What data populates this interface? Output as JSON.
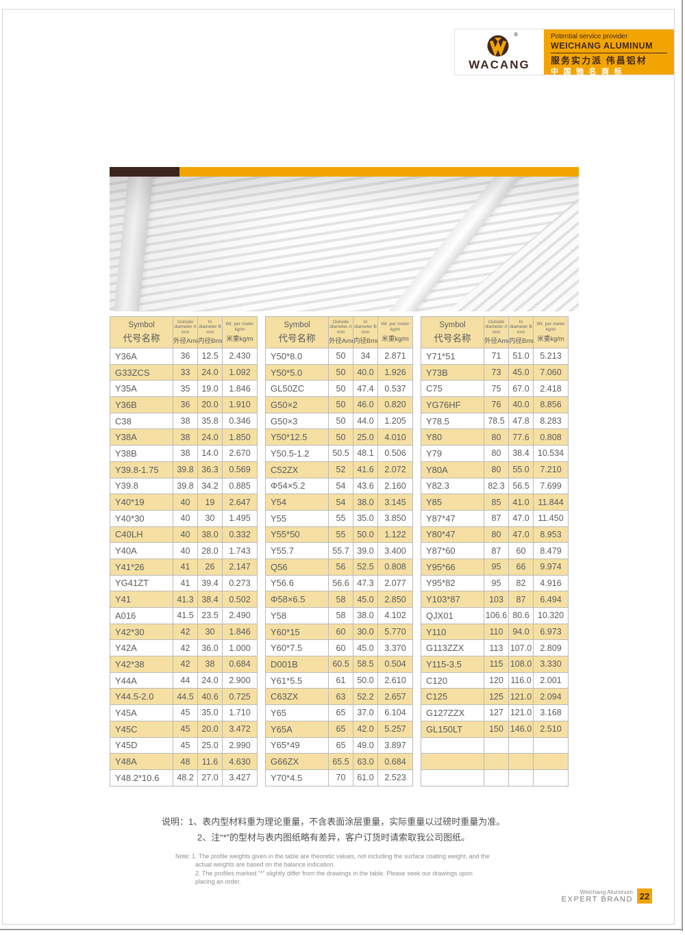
{
  "colors": {
    "accent_orange": "#F2A502",
    "dark_brown": "#42281E",
    "table_yellow": "#F5DFA2",
    "banner_bar_brown": "#3B241D"
  },
  "brand": {
    "logo_text": "WACANG",
    "registered_mark": "®",
    "tagline_en_1": "Potential service provider",
    "tagline_en_2": "WEICHANG ALUMINUM",
    "tagline_cn_1": "服务实力派  伟昌铝材",
    "tagline_cn_2": "中国驰名商标"
  },
  "table_header": {
    "symbol_en": "Symbol",
    "symbol_cn": "代号名称",
    "col_a_en": "Outside diameter A mm",
    "col_a_cn": "外径Amm",
    "col_b_en": "In diameter B mm",
    "col_b_cn": "内径Bmm",
    "col_wt_en": "Wt. per meter kg/m",
    "col_wt_cn": "米重kg/m"
  },
  "tables": [
    {
      "rows": [
        [
          "Y36A",
          "36",
          "12.5",
          "2.430"
        ],
        [
          "G33ZCS",
          "33",
          "24.0",
          "1.092"
        ],
        [
          "Y35A",
          "35",
          "19.0",
          "1.846"
        ],
        [
          "Y36B",
          "36",
          "20.0",
          "1.910"
        ],
        [
          "C38",
          "38",
          "35.8",
          "0.346"
        ],
        [
          "Y38A",
          "38",
          "24.0",
          "1.850"
        ],
        [
          "Y38B",
          "38",
          "14.0",
          "2.670"
        ],
        [
          "Y39.8-1.75",
          "39.8",
          "36.3",
          "0.569"
        ],
        [
          "Y39.8",
          "39.8",
          "34.2",
          "0.885"
        ],
        [
          "Y40*19",
          "40",
          "19",
          "2.647"
        ],
        [
          "Y40*30",
          "40",
          "30",
          "1.495"
        ],
        [
          "C40LH",
          "40",
          "38.0",
          "0.332"
        ],
        [
          "Y40A",
          "40",
          "28.0",
          "1.743"
        ],
        [
          "Y41*26",
          "41",
          "26",
          "2.147"
        ],
        [
          "YG41ZT",
          "41",
          "39.4",
          "0.273"
        ],
        [
          "Y41",
          "41.3",
          "38.4",
          "0.502"
        ],
        [
          "A016",
          "41.5",
          "23.5",
          "2.490"
        ],
        [
          "Y42*30",
          "42",
          "30",
          "1.846"
        ],
        [
          "Y42A",
          "42",
          "36.0",
          "1.000"
        ],
        [
          "Y42*38",
          "42",
          "38",
          "0.684"
        ],
        [
          "Y44A",
          "44",
          "24.0",
          "2.900"
        ],
        [
          "Y44.5-2.0",
          "44.5",
          "40.6",
          "0.725"
        ],
        [
          "Y45A",
          "45",
          "35.0",
          "1.710"
        ],
        [
          "Y45C",
          "45",
          "20.0",
          "3.472"
        ],
        [
          "Y45D",
          "45",
          "25.0",
          "2.990"
        ],
        [
          "Y48A",
          "48",
          "11.6",
          "4.630"
        ],
        [
          "Y48.2*10.6",
          "48.2",
          "27.0",
          "3.427"
        ]
      ]
    },
    {
      "rows": [
        [
          "Y50*8.0",
          "50",
          "34",
          "2.871"
        ],
        [
          "Y50*5.0",
          "50",
          "40.0",
          "1.926"
        ],
        [
          "GL50ZC",
          "50",
          "47.4",
          "0.537"
        ],
        [
          "G50×2",
          "50",
          "46.0",
          "0.820"
        ],
        [
          "G50×3",
          "50",
          "44.0",
          "1.205"
        ],
        [
          "Y50*12.5",
          "50",
          "25.0",
          "4.010"
        ],
        [
          "Y50.5-1.2",
          "50.5",
          "48.1",
          "0.506"
        ],
        [
          "C52ZX",
          "52",
          "41.6",
          "2.072"
        ],
        [
          "Φ54×5.2",
          "54",
          "43.6",
          "2.160"
        ],
        [
          "Y54",
          "54",
          "38.0",
          "3.145"
        ],
        [
          "Y55",
          "55",
          "35.0",
          "3.850"
        ],
        [
          "Y55*50",
          "55",
          "50.0",
          "1.122"
        ],
        [
          "Y55.7",
          "55.7",
          "39.0",
          "3.400"
        ],
        [
          "Q56",
          "56",
          "52.5",
          "0.808"
        ],
        [
          "Y56.6",
          "56.6",
          "47.3",
          "2.077"
        ],
        [
          "Φ58×6.5",
          "58",
          "45.0",
          "2.850"
        ],
        [
          "Y58",
          "58",
          "38.0",
          "4.102"
        ],
        [
          "Y60*15",
          "60",
          "30.0",
          "5.770"
        ],
        [
          "Y60*7.5",
          "60",
          "45.0",
          "3.370"
        ],
        [
          "D001B",
          "60.5",
          "58.5",
          "0.504"
        ],
        [
          "Y61*5.5",
          "61",
          "50.0",
          "2.610"
        ],
        [
          "C63ZX",
          "63",
          "52.2",
          "2.657"
        ],
        [
          "Y65",
          "65",
          "37.0",
          "6.104"
        ],
        [
          "Y65A",
          "65",
          "42.0",
          "5.257"
        ],
        [
          "Y65*49",
          "65",
          "49.0",
          "3.897"
        ],
        [
          "G66ZX",
          "65.5",
          "63.0",
          "0.684"
        ],
        [
          "Y70*4.5",
          "70",
          "61.0",
          "2.523"
        ]
      ]
    },
    {
      "rows": [
        [
          "Y71*51",
          "71",
          "51.0",
          "5.213"
        ],
        [
          "Y73B",
          "73",
          "45.0",
          "7.060"
        ],
        [
          "C75",
          "75",
          "67.0",
          "2.418"
        ],
        [
          "YG76HF",
          "76",
          "40.0",
          "8.856"
        ],
        [
          "Y78.5",
          "78.5",
          "47.8",
          "8.283"
        ],
        [
          "Y80",
          "80",
          "77.6",
          "0.808"
        ],
        [
          "Y79",
          "80",
          "38.4",
          "10.534"
        ],
        [
          "Y80A",
          "80",
          "55.0",
          "7.210"
        ],
        [
          "Y82.3",
          "82.3",
          "56.5",
          "7.699"
        ],
        [
          "Y85",
          "85",
          "41.0",
          "11.844"
        ],
        [
          "Y87*47",
          "87",
          "47.0",
          "11.450"
        ],
        [
          "Y80*47",
          "80",
          "47.0",
          "8.953"
        ],
        [
          "Y87*60",
          "87",
          "60",
          "8.479"
        ],
        [
          "Y95*66",
          "95",
          "66",
          "9.974"
        ],
        [
          "Y95*82",
          "95",
          "82",
          "4.916"
        ],
        [
          "Y103*87",
          "103",
          "87",
          "6.494"
        ],
        [
          "QJX01",
          "106.6",
          "80.6",
          "10.320"
        ],
        [
          "Y110",
          "110",
          "94.0",
          "6.973"
        ],
        [
          "G113ZZX",
          "113",
          "107.0",
          "2.809"
        ],
        [
          "Y115-3.5",
          "115",
          "108.0",
          "3.330"
        ],
        [
          "C120",
          "120",
          "116.0",
          "2.001"
        ],
        [
          "C125",
          "125",
          "121.0",
          "2.094"
        ],
        [
          "G127ZZX",
          "127",
          "121.0",
          "3.168"
        ],
        [
          "GL150LT",
          "150",
          "146.0",
          "2.510"
        ],
        [
          "",
          "",
          "",
          ""
        ],
        [
          "",
          "",
          "",
          ""
        ],
        [
          "",
          "",
          "",
          ""
        ]
      ]
    }
  ],
  "notes": {
    "cn_line1": "说明：1、表内型材料重为理论重量，不含表面涂层重量，实际重量以过磅时重量为准。",
    "cn_line2": "2、注“*”的型材与表内图纸略有差异，客户订货时请索取我公司图纸。",
    "en_line1": "Note: 1. The profile weights given in the table are theoretic values, not including the surface coating weight, and the",
    "en_line2": "actual weights are based on the balance indication.",
    "en_line3": "2. The profiles marked  “*”  slightly differ from the drawings in the table. Please seek our drawings upon",
    "en_line4": "placing an order."
  },
  "footer": {
    "brand_line1": "Weichang Aluminum",
    "brand_line2": "EXPERT BRAND",
    "page_number": "22"
  }
}
